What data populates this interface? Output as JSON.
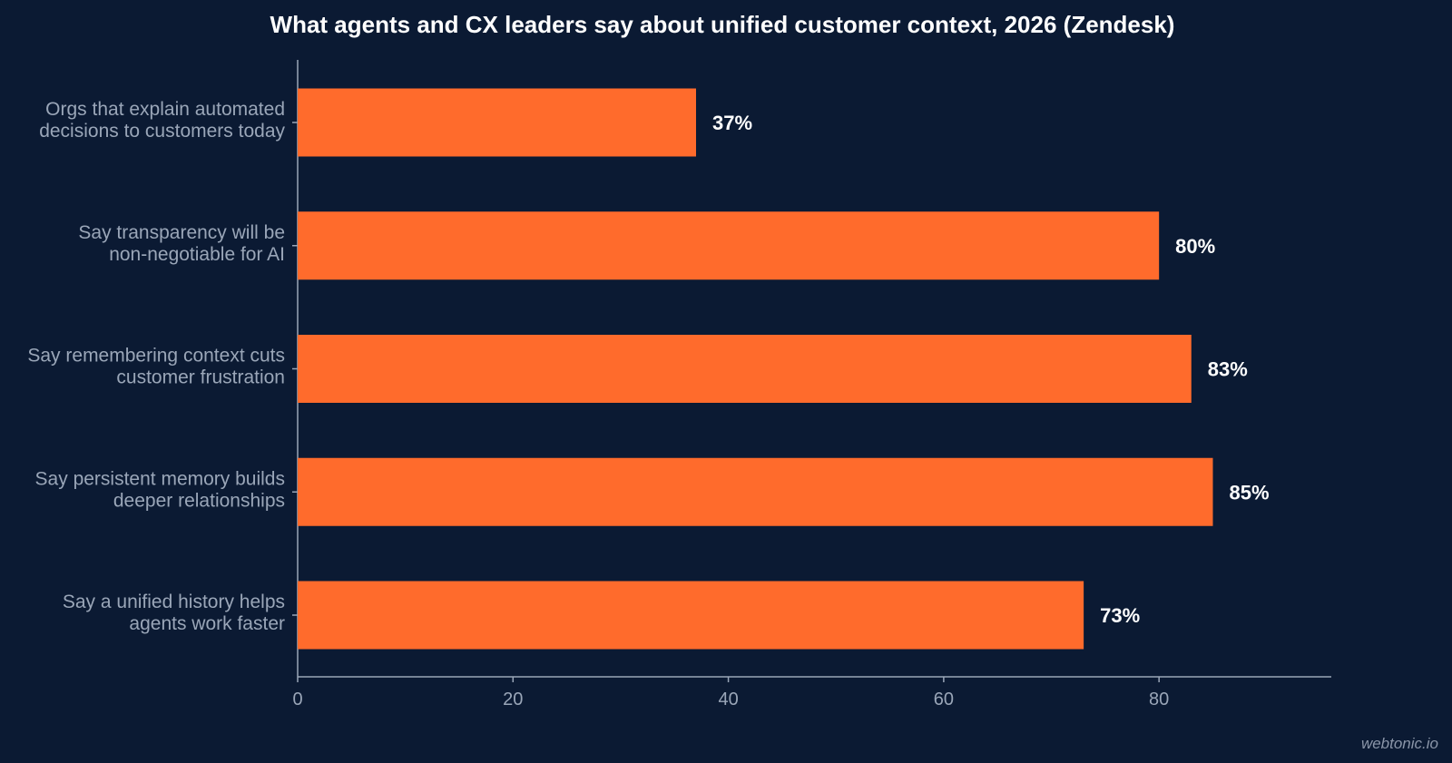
{
  "chart_data": {
    "type": "bar",
    "orientation": "horizontal",
    "title": "What agents and CX leaders say about unified customer context, 2026 (Zendesk)",
    "categories": [
      [
        "Orgs that explain automated",
        "decisions to customers today"
      ],
      [
        "Say transparency will be",
        "non-negotiable for AI"
      ],
      [
        "Say remembering context cuts",
        "customer frustration"
      ],
      [
        "Say persistent memory builds",
        "deeper relationships"
      ],
      [
        "Say a unified history helps",
        "agents work faster"
      ]
    ],
    "values": [
      37,
      80,
      83,
      85,
      73
    ],
    "data_labels": [
      "37%",
      "80%",
      "83%",
      "85%",
      "73%"
    ],
    "xlim": [
      0,
      96
    ],
    "xticks": [
      0,
      20,
      40,
      60,
      80
    ],
    "xtick_labels": [
      "0",
      "20",
      "40",
      "60",
      "80"
    ],
    "xlabel": "",
    "ylabel": "",
    "grid": false,
    "bar_color": "#ff6b2c",
    "background_color": "#0b1a33"
  },
  "watermark": "webtonic.io"
}
